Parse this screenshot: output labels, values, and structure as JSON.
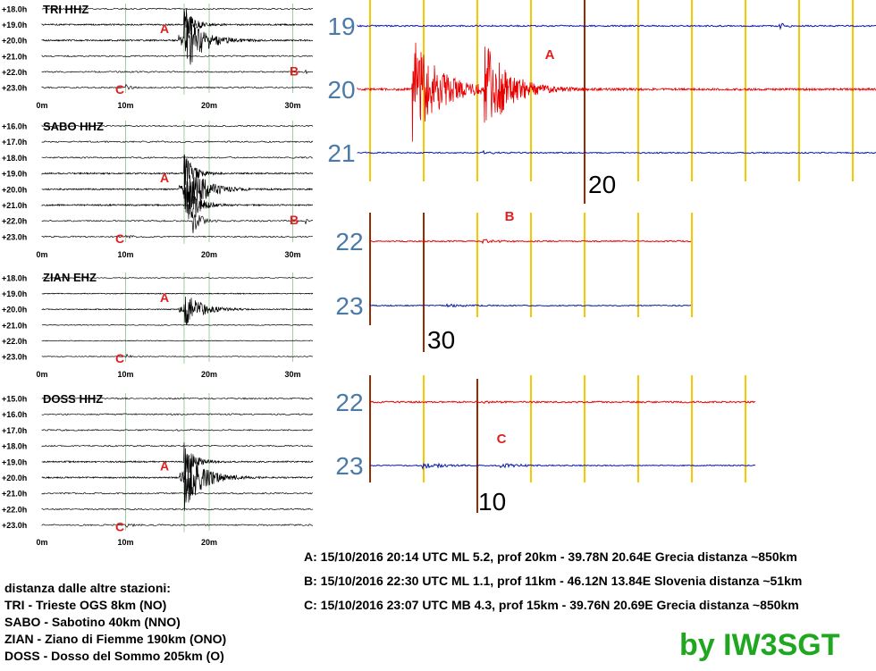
{
  "colors": {
    "trace_red": "#e80000",
    "trace_blue": "#0a1aa8",
    "marker_yellow": "#f5c800",
    "marker_darkred": "#9a2a00",
    "hour_label": "#4a7aa8",
    "label_red": "#e02020",
    "credit_green": "#1fa81f",
    "grid_green": "#9ecf9e"
  },
  "chart_data": [
    {
      "type": "line",
      "title": "TRI HHZ",
      "hours": [
        "+18.0h",
        "+19.0h",
        "+20.0h",
        "+21.0h",
        "+22.0h",
        "+23.0h"
      ],
      "x_ticks": [
        "0m",
        "10m",
        "20m",
        "30m"
      ],
      "xlim": [
        0,
        33
      ],
      "events": [
        {
          "label": "A",
          "hour": "+20.0h",
          "minute": 14
        },
        {
          "label": "B",
          "hour": "+22.0h",
          "minute": 30
        },
        {
          "label": "C",
          "hour": "+23.0h",
          "minute": 7
        }
      ]
    },
    {
      "type": "line",
      "title": "SABO HHZ",
      "hours": [
        "+16.0h",
        "+17.0h",
        "+18.0h",
        "+19.0h",
        "+20.0h",
        "+21.0h",
        "+22.0h",
        "+23.0h"
      ],
      "x_ticks": [
        "0m",
        "10m",
        "20m",
        "30m"
      ],
      "xlim": [
        0,
        33
      ],
      "events": [
        {
          "label": "A",
          "hour": "+20.0h",
          "minute": 14
        },
        {
          "label": "B",
          "hour": "+22.0h",
          "minute": 30
        },
        {
          "label": "C",
          "hour": "+23.0h",
          "minute": 7
        }
      ]
    },
    {
      "type": "line",
      "title": "ZIAN EHZ",
      "hours": [
        "+18.0h",
        "+19.0h",
        "+20.0h",
        "+21.0h",
        "+22.0h",
        "+23.0h"
      ],
      "x_ticks": [
        "0m",
        "10m",
        "20m",
        "30m"
      ],
      "xlim": [
        0,
        33
      ],
      "events": [
        {
          "label": "A",
          "hour": "+20.0h",
          "minute": 14
        },
        {
          "label": "C",
          "hour": "+23.0h",
          "minute": 7
        }
      ]
    },
    {
      "type": "line",
      "title": "DOSS HHZ",
      "hours": [
        "+15.0h",
        "+16.0h",
        "+17.0h",
        "+18.0h",
        "+19.0h",
        "+20.0h",
        "+21.0h",
        "+22.0h",
        "+23.0h"
      ],
      "x_ticks": [
        "0m",
        "10m",
        "20m"
      ],
      "xlim": [
        0,
        33
      ],
      "events": [
        {
          "label": "A",
          "hour": "+20.0h",
          "minute": 14
        },
        {
          "label": "C",
          "hour": "+23.0h",
          "minute": 7
        }
      ]
    },
    {
      "type": "line",
      "title": "",
      "hours": [
        "19",
        "20",
        "21"
      ],
      "marker_label": "20",
      "event_label": "A"
    },
    {
      "type": "line",
      "title": "",
      "hours": [
        "22",
        "23"
      ],
      "marker_label": "30",
      "event_label": "B"
    },
    {
      "type": "line",
      "title": "",
      "hours": [
        "22",
        "23"
      ],
      "marker_label": "10",
      "event_label": "C"
    }
  ],
  "info": {
    "heading": "distanza dalle altre stazioni:",
    "stations": [
      "TRI - Trieste OGS 8km (NO)",
      "SABO - Sabotino 40km (NNO)",
      "ZIAN - Ziano di Fiemme 190km (ONO)",
      "DOSS - Dosso del Sommo 205km (O)"
    ]
  },
  "events": [
    "A: 15/10/2016 20:14 UTC ML 5.2, prof 20km - 39.78N 20.64E Grecia distanza ~850km",
    "B: 15/10/2016 22:30 UTC ML 1.1, prof 11km - 46.12N 13.84E Slovenia distanza ~51km",
    "C: 15/10/2016 23:07 UTC MB 4.3, prof 15km - 39.76N 20.69E Grecia distanza ~850km"
  ],
  "credit": "by IW3SGT"
}
